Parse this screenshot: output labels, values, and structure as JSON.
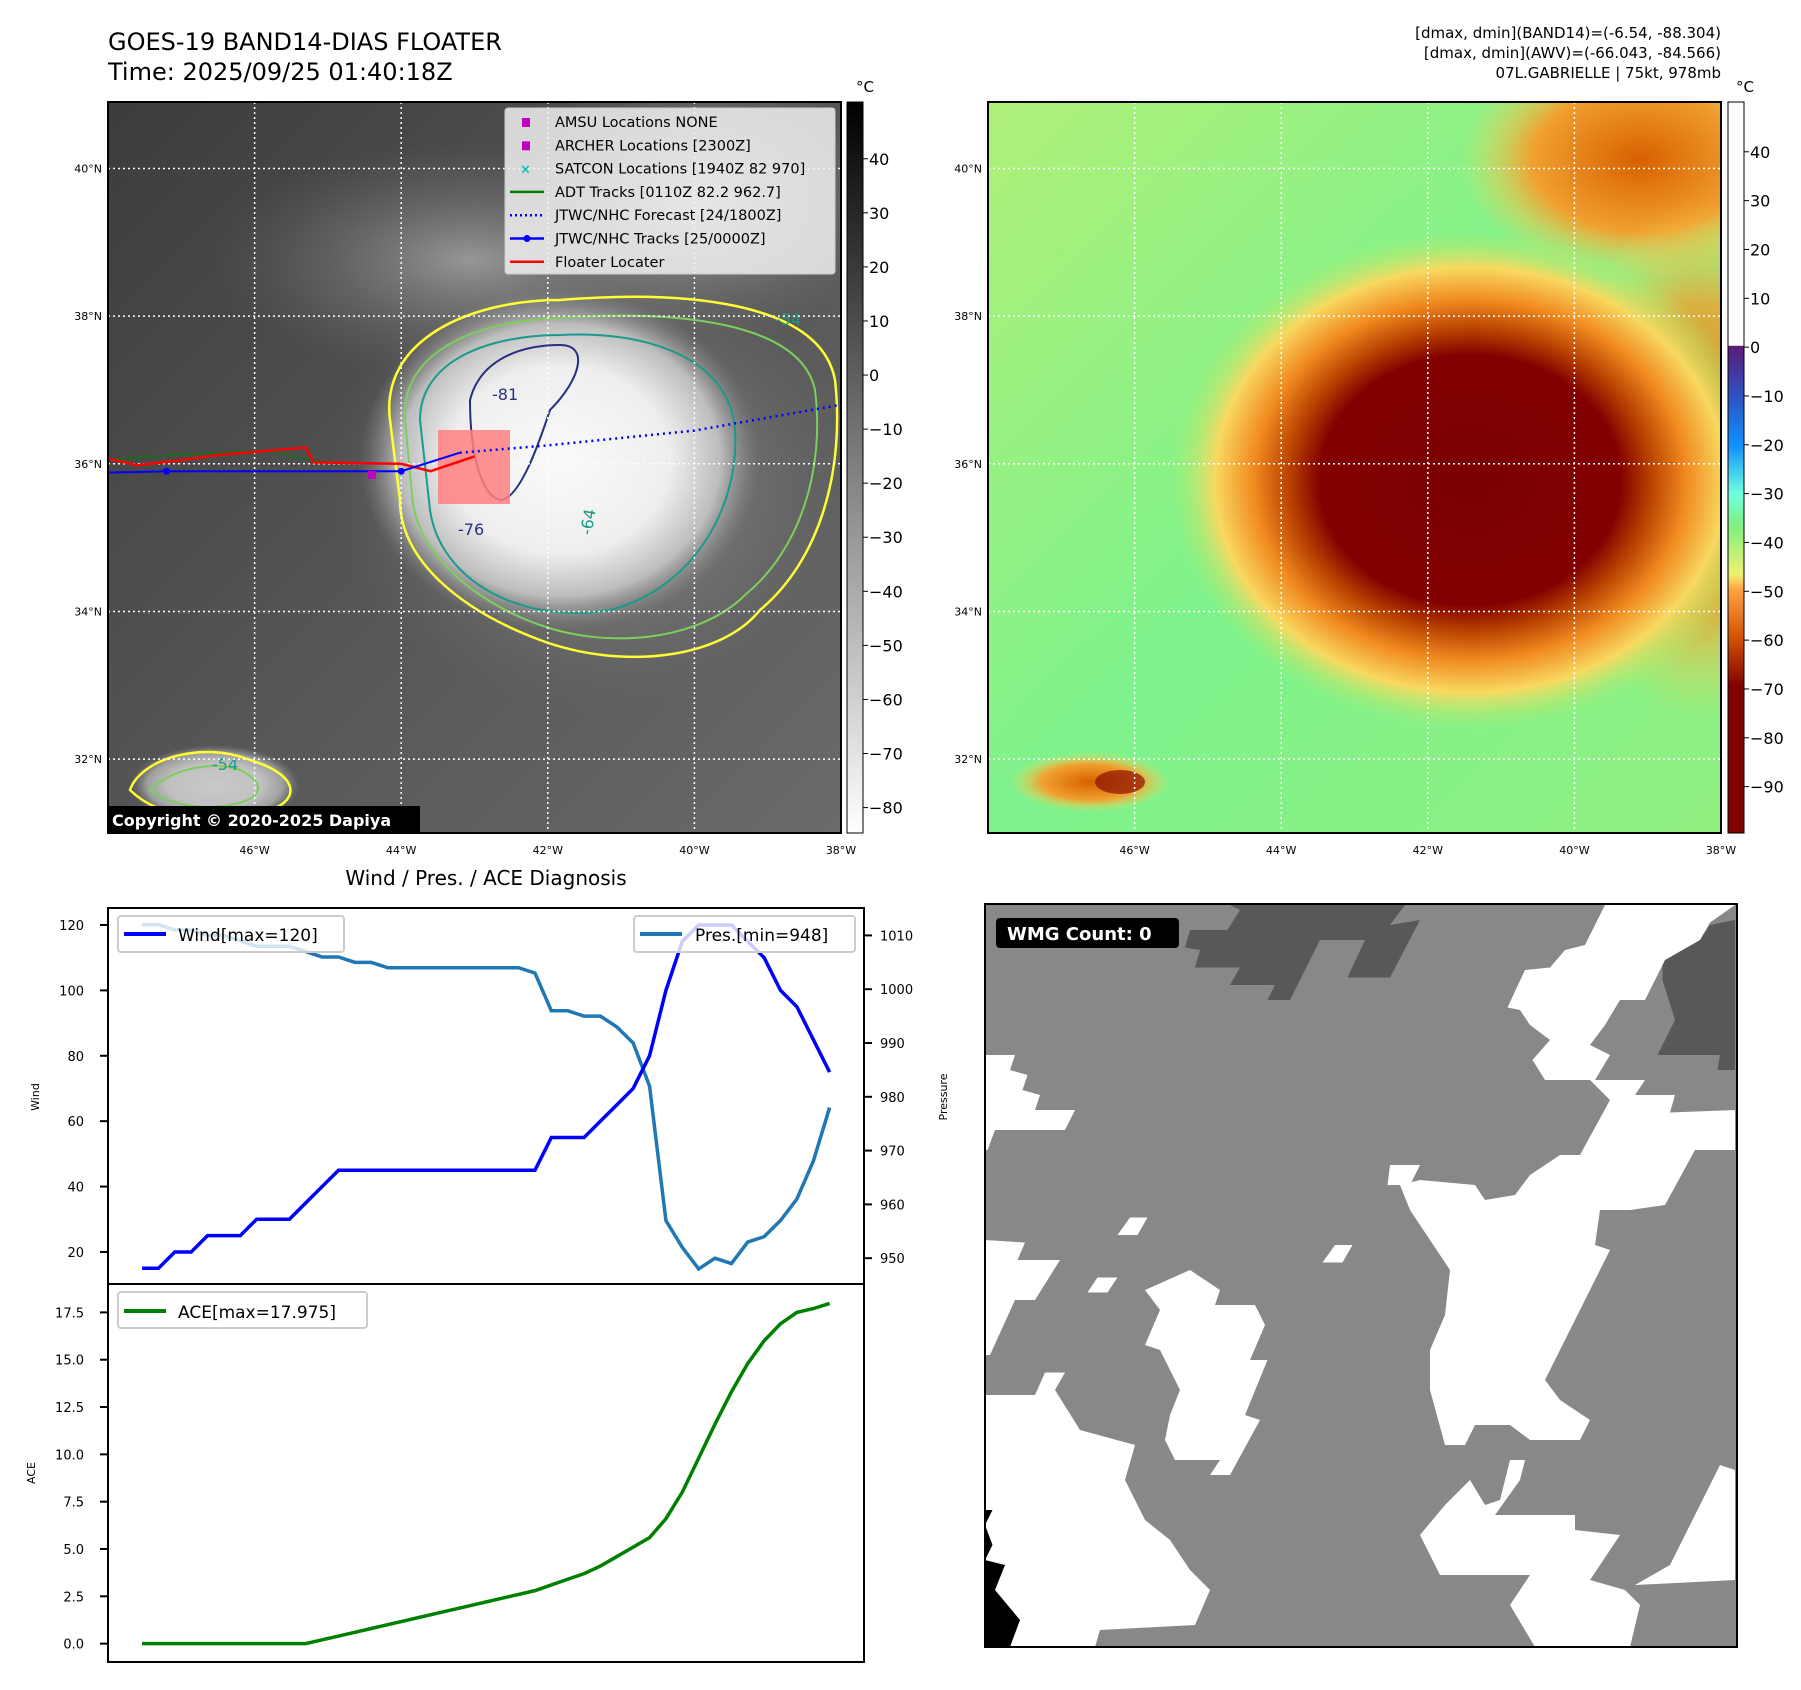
{
  "header": {
    "title_line1": "GOES-19 BAND14-DIAS FLOATER",
    "title_line2": "Time: 2025/09/25 01:40:18Z",
    "info_line1": "[dmax, dmin](BAND14)=(-6.54, -88.304)",
    "info_line2": "[dmax, dmin](AWV)=(-66.043, -84.566)",
    "info_line3": "07L.GABRIELLE | 75kt, 978mb"
  },
  "maps": {
    "lat_labels": [
      "40°N",
      "38°N",
      "36°N",
      "34°N",
      "32°N"
    ],
    "lon_labels": [
      "46°W",
      "44°W",
      "42°W",
      "40°W",
      "38°W"
    ],
    "unit": "°C",
    "copyright": "Copyright © 2020-2025 Dapiya",
    "contour_labels": [
      "-81",
      "-76",
      "-64",
      "-54",
      "-54"
    ],
    "legend": [
      {
        "label": "AMSU Locations NONE",
        "color": "#c000c0"
      },
      {
        "label": "ARCHER Locations [2300Z]",
        "color": "#c000c0"
      },
      {
        "label": "SATCON Locations [1940Z 82 970]",
        "color": "#00c0c0"
      },
      {
        "label": "ADT Tracks [0110Z 82.2 962.7]",
        "color": "#008000"
      },
      {
        "label": "JTWC/NHC Forecast [24/1800Z]",
        "color": "#0000ff"
      },
      {
        "label": "JTWC/NHC Tracks [25/0000Z]",
        "color": "#0000ff"
      },
      {
        "label": "Floater Locater",
        "color": "#ff0000"
      }
    ],
    "colorbar1_ticks": [
      "40",
      "30",
      "20",
      "10",
      "0",
      "−10",
      "−20",
      "−30",
      "−40",
      "−50",
      "−60",
      "−70",
      "−80"
    ],
    "colorbar2_ticks": [
      "40",
      "30",
      "20",
      "10",
      "0",
      "−10",
      "−20",
      "−30",
      "−40",
      "−50",
      "−60",
      "−70",
      "−80",
      "−90"
    ]
  },
  "wmg": {
    "label": "WMG Count: 0"
  },
  "chart_data": [
    {
      "type": "line",
      "title": "Wind / Pres. / ACE Diagnosis",
      "ylabel": "Wind",
      "ylabel_right": "Pressure",
      "ylim": [
        10.2,
        125.2
      ],
      "ylim_right": [
        945.2,
        1015.1
      ],
      "xlim": [
        -2.08,
        44.1
      ],
      "yticks": [
        "20",
        "40",
        "60",
        "80",
        "100",
        "120"
      ],
      "yticks_right": [
        "950",
        "960",
        "970",
        "980",
        "990",
        "1000",
        "1010"
      ],
      "series": [
        {
          "name": "Wind[max=120]",
          "color": "#0000ff",
          "axis": "left",
          "values": [
            15,
            15,
            20,
            20,
            25,
            25,
            25,
            30,
            30,
            30,
            35,
            40,
            45,
            45,
            45,
            45,
            45,
            45,
            45,
            45,
            45,
            45,
            45,
            45,
            45,
            55,
            55,
            55,
            60,
            65,
            70,
            80,
            100,
            115,
            120,
            120,
            120,
            115,
            110,
            100,
            95,
            85,
            75
          ]
        },
        {
          "name": "Pres.[min=948]",
          "color": "#1f77b4",
          "axis": "right",
          "values": [
            1012,
            1012,
            1011,
            1011,
            1010,
            1010,
            1009,
            1008,
            1008,
            1008,
            1007,
            1006,
            1006,
            1005,
            1005,
            1004,
            1004,
            1004,
            1004,
            1004,
            1004,
            1004,
            1004,
            1004,
            1003,
            996,
            996,
            995,
            995,
            993,
            990,
            982,
            957,
            952,
            948,
            950,
            949,
            953,
            954,
            957,
            961,
            968,
            978
          ]
        }
      ]
    },
    {
      "type": "line",
      "ylabel": "ACE",
      "ylim": [
        -0.97,
        19.0
      ],
      "xlim": [
        -2.08,
        44.1
      ],
      "yticks": [
        "0.0",
        "2.5",
        "5.0",
        "7.5",
        "10.0",
        "12.5",
        "15.0",
        "17.5"
      ],
      "series": [
        {
          "name": "ACE[max=17.975]",
          "color": "#008000",
          "values": [
            0,
            0,
            0,
            0,
            0,
            0,
            0,
            0,
            0,
            0,
            0,
            0.2,
            0.4,
            0.6,
            0.8,
            1.0,
            1.2,
            1.4,
            1.6,
            1.8,
            2.0,
            2.2,
            2.4,
            2.6,
            2.8,
            3.1,
            3.4,
            3.7,
            4.1,
            4.6,
            5.1,
            5.6,
            6.6,
            8.0,
            9.8,
            11.6,
            13.3,
            14.8,
            16.0,
            16.9,
            17.5,
            17.7,
            17.975
          ]
        }
      ]
    }
  ]
}
